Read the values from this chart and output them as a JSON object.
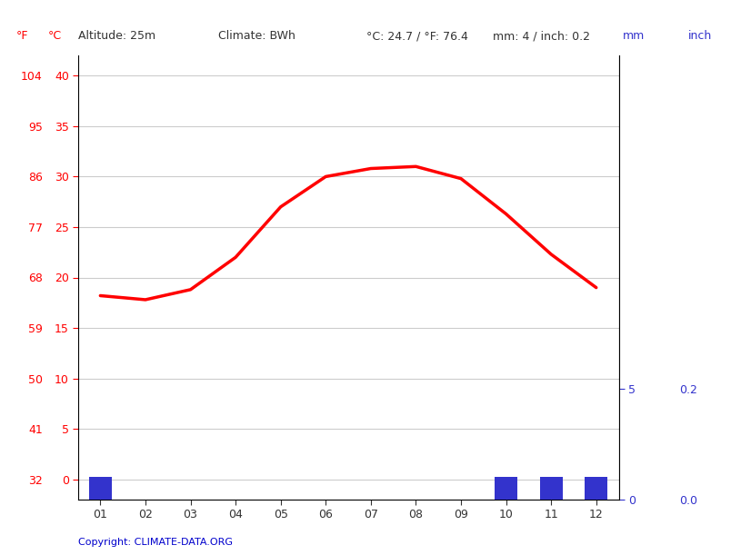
{
  "months": [
    "01",
    "02",
    "03",
    "04",
    "05",
    "06",
    "07",
    "08",
    "09",
    "10",
    "11",
    "12"
  ],
  "temp_c": [
    18.2,
    17.8,
    18.8,
    22.0,
    27.0,
    30.0,
    30.8,
    31.0,
    29.8,
    26.3,
    22.3,
    19.0
  ],
  "precip_mm": [
    1,
    0,
    0,
    0,
    0,
    0,
    0,
    0,
    0,
    1,
    1,
    1
  ],
  "temp_color": "#ff0000",
  "precip_color": "#3333cc",
  "yticks_c": [
    0,
    5,
    10,
    15,
    20,
    25,
    30,
    35,
    40
  ],
  "yticks_f": [
    32,
    41,
    50,
    59,
    68,
    77,
    86,
    95,
    104
  ],
  "ylim_c": [
    -2.0,
    42.0
  ],
  "precip_ylim_mm": [
    0,
    20
  ],
  "grid_color": "#cccccc",
  "background_color": "#ffffff",
  "copyright_text": "Copyright: CLIMATE-DATA.ORG",
  "copyright_color": "#0000cc",
  "label_red": "#ff0000",
  "label_blue": "#3333cc",
  "header_dark": "#333333"
}
